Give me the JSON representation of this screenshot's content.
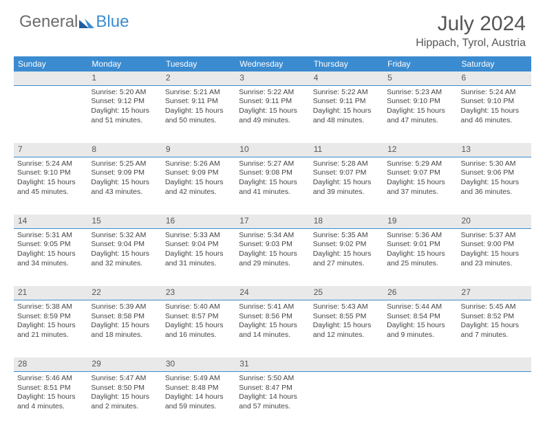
{
  "brand": {
    "word1": "General",
    "word2": "Blue"
  },
  "title": "July 2024",
  "location": "Hippach, Tyrol, Austria",
  "weekday_labels": [
    "Sunday",
    "Monday",
    "Tuesday",
    "Wednesday",
    "Thursday",
    "Friday",
    "Saturday"
  ],
  "colors": {
    "header_bg": "#3b8bd0",
    "header_text": "#ffffff",
    "daynum_bg": "#e9e9e9",
    "daynum_border": "#3b8bd0",
    "body_text": "#444444",
    "title_text": "#555555",
    "logo_gray": "#6b6b6b",
    "logo_blue": "#3b8bd0",
    "background": "#ffffff"
  },
  "weeks": [
    {
      "nums": [
        "",
        "1",
        "2",
        "3",
        "4",
        "5",
        "6"
      ],
      "cells": [
        null,
        {
          "sunrise": "Sunrise: 5:20 AM",
          "sunset": "Sunset: 9:12 PM",
          "day1": "Daylight: 15 hours",
          "day2": "and 51 minutes."
        },
        {
          "sunrise": "Sunrise: 5:21 AM",
          "sunset": "Sunset: 9:11 PM",
          "day1": "Daylight: 15 hours",
          "day2": "and 50 minutes."
        },
        {
          "sunrise": "Sunrise: 5:22 AM",
          "sunset": "Sunset: 9:11 PM",
          "day1": "Daylight: 15 hours",
          "day2": "and 49 minutes."
        },
        {
          "sunrise": "Sunrise: 5:22 AM",
          "sunset": "Sunset: 9:11 PM",
          "day1": "Daylight: 15 hours",
          "day2": "and 48 minutes."
        },
        {
          "sunrise": "Sunrise: 5:23 AM",
          "sunset": "Sunset: 9:10 PM",
          "day1": "Daylight: 15 hours",
          "day2": "and 47 minutes."
        },
        {
          "sunrise": "Sunrise: 5:24 AM",
          "sunset": "Sunset: 9:10 PM",
          "day1": "Daylight: 15 hours",
          "day2": "and 46 minutes."
        }
      ]
    },
    {
      "nums": [
        "7",
        "8",
        "9",
        "10",
        "11",
        "12",
        "13"
      ],
      "cells": [
        {
          "sunrise": "Sunrise: 5:24 AM",
          "sunset": "Sunset: 9:10 PM",
          "day1": "Daylight: 15 hours",
          "day2": "and 45 minutes."
        },
        {
          "sunrise": "Sunrise: 5:25 AM",
          "sunset": "Sunset: 9:09 PM",
          "day1": "Daylight: 15 hours",
          "day2": "and 43 minutes."
        },
        {
          "sunrise": "Sunrise: 5:26 AM",
          "sunset": "Sunset: 9:09 PM",
          "day1": "Daylight: 15 hours",
          "day2": "and 42 minutes."
        },
        {
          "sunrise": "Sunrise: 5:27 AM",
          "sunset": "Sunset: 9:08 PM",
          "day1": "Daylight: 15 hours",
          "day2": "and 41 minutes."
        },
        {
          "sunrise": "Sunrise: 5:28 AM",
          "sunset": "Sunset: 9:07 PM",
          "day1": "Daylight: 15 hours",
          "day2": "and 39 minutes."
        },
        {
          "sunrise": "Sunrise: 5:29 AM",
          "sunset": "Sunset: 9:07 PM",
          "day1": "Daylight: 15 hours",
          "day2": "and 37 minutes."
        },
        {
          "sunrise": "Sunrise: 5:30 AM",
          "sunset": "Sunset: 9:06 PM",
          "day1": "Daylight: 15 hours",
          "day2": "and 36 minutes."
        }
      ]
    },
    {
      "nums": [
        "14",
        "15",
        "16",
        "17",
        "18",
        "19",
        "20"
      ],
      "cells": [
        {
          "sunrise": "Sunrise: 5:31 AM",
          "sunset": "Sunset: 9:05 PM",
          "day1": "Daylight: 15 hours",
          "day2": "and 34 minutes."
        },
        {
          "sunrise": "Sunrise: 5:32 AM",
          "sunset": "Sunset: 9:04 PM",
          "day1": "Daylight: 15 hours",
          "day2": "and 32 minutes."
        },
        {
          "sunrise": "Sunrise: 5:33 AM",
          "sunset": "Sunset: 9:04 PM",
          "day1": "Daylight: 15 hours",
          "day2": "and 31 minutes."
        },
        {
          "sunrise": "Sunrise: 5:34 AM",
          "sunset": "Sunset: 9:03 PM",
          "day1": "Daylight: 15 hours",
          "day2": "and 29 minutes."
        },
        {
          "sunrise": "Sunrise: 5:35 AM",
          "sunset": "Sunset: 9:02 PM",
          "day1": "Daylight: 15 hours",
          "day2": "and 27 minutes."
        },
        {
          "sunrise": "Sunrise: 5:36 AM",
          "sunset": "Sunset: 9:01 PM",
          "day1": "Daylight: 15 hours",
          "day2": "and 25 minutes."
        },
        {
          "sunrise": "Sunrise: 5:37 AM",
          "sunset": "Sunset: 9:00 PM",
          "day1": "Daylight: 15 hours",
          "day2": "and 23 minutes."
        }
      ]
    },
    {
      "nums": [
        "21",
        "22",
        "23",
        "24",
        "25",
        "26",
        "27"
      ],
      "cells": [
        {
          "sunrise": "Sunrise: 5:38 AM",
          "sunset": "Sunset: 8:59 PM",
          "day1": "Daylight: 15 hours",
          "day2": "and 21 minutes."
        },
        {
          "sunrise": "Sunrise: 5:39 AM",
          "sunset": "Sunset: 8:58 PM",
          "day1": "Daylight: 15 hours",
          "day2": "and 18 minutes."
        },
        {
          "sunrise": "Sunrise: 5:40 AM",
          "sunset": "Sunset: 8:57 PM",
          "day1": "Daylight: 15 hours",
          "day2": "and 16 minutes."
        },
        {
          "sunrise": "Sunrise: 5:41 AM",
          "sunset": "Sunset: 8:56 PM",
          "day1": "Daylight: 15 hours",
          "day2": "and 14 minutes."
        },
        {
          "sunrise": "Sunrise: 5:43 AM",
          "sunset": "Sunset: 8:55 PM",
          "day1": "Daylight: 15 hours",
          "day2": "and 12 minutes."
        },
        {
          "sunrise": "Sunrise: 5:44 AM",
          "sunset": "Sunset: 8:54 PM",
          "day1": "Daylight: 15 hours",
          "day2": "and 9 minutes."
        },
        {
          "sunrise": "Sunrise: 5:45 AM",
          "sunset": "Sunset: 8:52 PM",
          "day1": "Daylight: 15 hours",
          "day2": "and 7 minutes."
        }
      ]
    },
    {
      "nums": [
        "28",
        "29",
        "30",
        "31",
        "",
        "",
        ""
      ],
      "cells": [
        {
          "sunrise": "Sunrise: 5:46 AM",
          "sunset": "Sunset: 8:51 PM",
          "day1": "Daylight: 15 hours",
          "day2": "and 4 minutes."
        },
        {
          "sunrise": "Sunrise: 5:47 AM",
          "sunset": "Sunset: 8:50 PM",
          "day1": "Daylight: 15 hours",
          "day2": "and 2 minutes."
        },
        {
          "sunrise": "Sunrise: 5:49 AM",
          "sunset": "Sunset: 8:48 PM",
          "day1": "Daylight: 14 hours",
          "day2": "and 59 minutes."
        },
        {
          "sunrise": "Sunrise: 5:50 AM",
          "sunset": "Sunset: 8:47 PM",
          "day1": "Daylight: 14 hours",
          "day2": "and 57 minutes."
        },
        null,
        null,
        null
      ]
    }
  ]
}
